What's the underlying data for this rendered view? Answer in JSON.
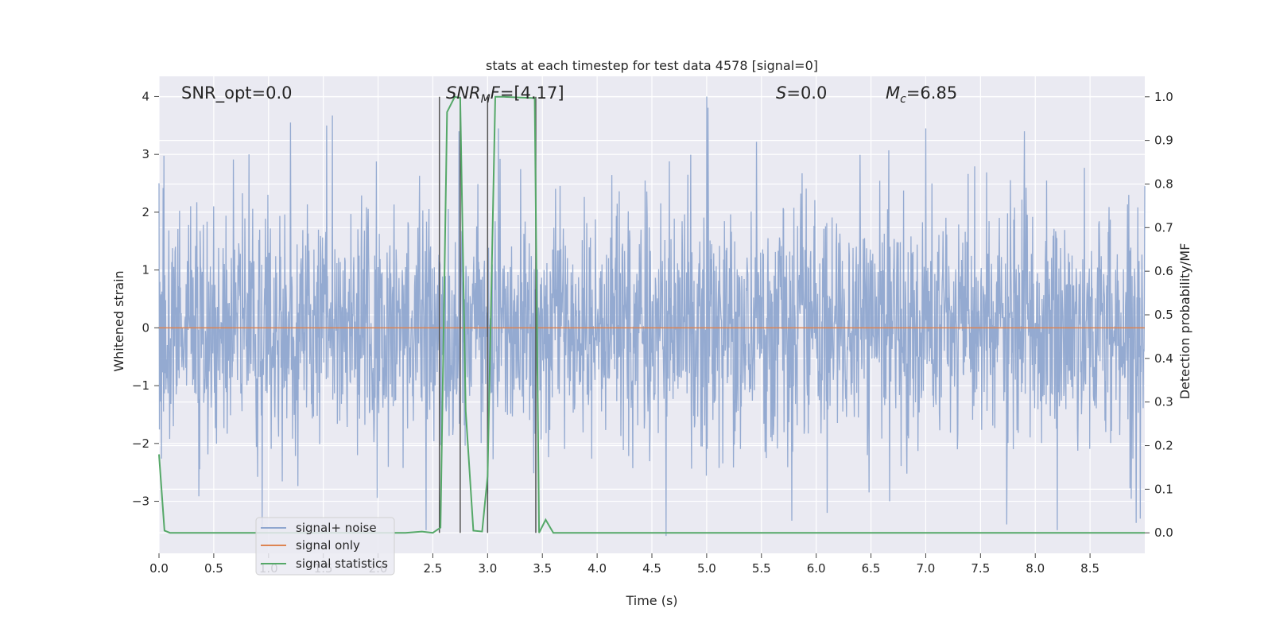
{
  "chart_data": {
    "type": "line",
    "title": "stats at each timestep for test data 4578 [signal=0]",
    "xlabel": "Time (s)",
    "ylabel_left": "Whitened strain",
    "ylabel_right": "Detection probability/MF",
    "xlim": [
      0.0,
      9.0
    ],
    "ylim_left": [
      -3.9,
      4.35
    ],
    "ylim_right": [
      -0.047,
      1.047
    ],
    "x_ticks": [
      "0.0",
      "0.5",
      "1.0",
      "1.5",
      "2.0",
      "2.5",
      "3.0",
      "3.5",
      "4.0",
      "4.5",
      "5.0",
      "5.5",
      "6.0",
      "6.5",
      "7.0",
      "7.5",
      "8.0",
      "8.5"
    ],
    "y_left_ticks": [
      4,
      3,
      2,
      1,
      0,
      -1,
      -2,
      -3
    ],
    "y_right_ticks": [
      "1.0",
      "0.9",
      "0.8",
      "0.7",
      "0.6",
      "0.5",
      "0.4",
      "0.3",
      "0.2",
      "0.1",
      "0.0"
    ],
    "grid": true,
    "legend_position": "lower-left",
    "annotations": {
      "snr_opt": "SNR_opt=0.0",
      "snr_mf": "=[4.17]",
      "s": "=0.0",
      "mc": "=6.85"
    },
    "series": [
      {
        "name": "signal+ noise",
        "axis": "left",
        "color": "#8fa6cf",
        "kind": "noise",
        "x_range": [
          0.0,
          9.0
        ],
        "approx_envelope": [
          -3.6,
          4.0
        ],
        "notable_peaks": [
          {
            "x": 0.0,
            "y": 2.5
          },
          {
            "x": 0.82,
            "y": 3.0
          },
          {
            "x": 1.2,
            "y": 3.55
          },
          {
            "x": 1.53,
            "y": 3.5
          },
          {
            "x": 2.74,
            "y": 3.4
          },
          {
            "x": 3.1,
            "y": 3.45
          },
          {
            "x": 5.0,
            "y": 4.0
          },
          {
            "x": 7.0,
            "y": 3.45
          },
          {
            "x": 7.9,
            "y": 3.4
          },
          {
            "x": 9.0,
            "y": 2.45
          }
        ],
        "notable_troughs": [
          {
            "x": 2.44,
            "y": -3.5
          },
          {
            "x": 4.63,
            "y": -3.6
          },
          {
            "x": 6.1,
            "y": -3.2
          },
          {
            "x": 7.74,
            "y": -3.4
          },
          {
            "x": 8.2,
            "y": -3.5
          },
          {
            "x": 8.96,
            "y": -3.3
          }
        ]
      },
      {
        "name": "signal only",
        "axis": "left",
        "color": "#dd8452",
        "x": [
          0.0,
          9.0
        ],
        "y": [
          0.0,
          0.0
        ]
      },
      {
        "name": "signal statistics",
        "axis": "right",
        "color": "#55a868",
        "x": [
          0.0,
          0.05,
          0.1,
          0.2,
          0.3,
          0.5,
          1.0,
          1.5,
          2.0,
          2.25,
          2.4,
          2.5,
          2.57,
          2.63,
          2.7,
          2.75,
          2.8,
          2.87,
          2.95,
          3.0,
          3.07,
          3.15,
          3.43,
          3.47,
          3.53,
          3.6,
          3.7,
          4.0,
          5.0,
          6.0,
          7.0,
          8.0,
          9.0
        ],
        "y": [
          0.18,
          0.005,
          0.0,
          0.0,
          0.0,
          0.0,
          0.0,
          0.0,
          0.0,
          0.0,
          0.003,
          0.0,
          0.012,
          0.965,
          1.0,
          0.997,
          0.28,
          0.005,
          0.003,
          0.13,
          1.0,
          1.0,
          0.997,
          0.0,
          0.03,
          0.0,
          0.0,
          0.0,
          0.0,
          0.0,
          0.0,
          0.0,
          0.0
        ]
      }
    ],
    "vertical_lines": [
      {
        "x": 2.56,
        "color": "#555555"
      },
      {
        "x": 2.75,
        "color": "#555555"
      },
      {
        "x": 3.0,
        "color": "#555555"
      },
      {
        "x": 3.44,
        "color": "#555555"
      }
    ]
  }
}
